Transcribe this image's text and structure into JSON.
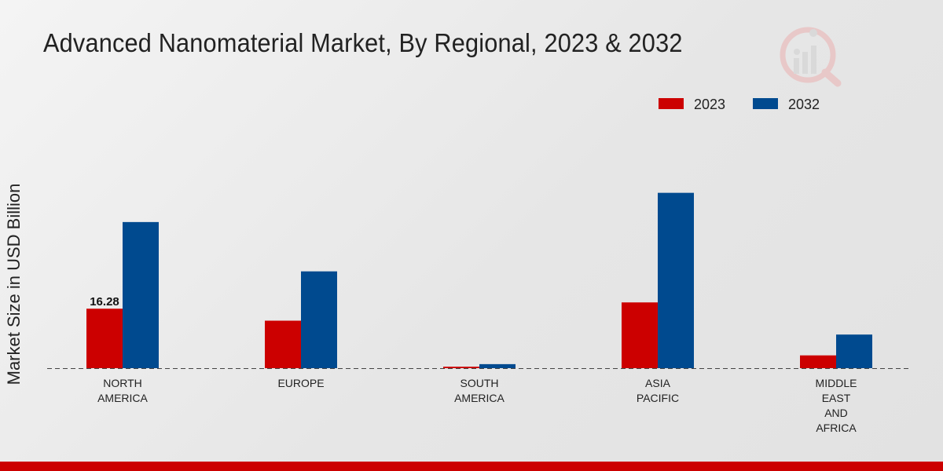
{
  "chart_data": {
    "type": "bar",
    "title": "Advanced Nanomaterial Market, By Regional, 2023 & 2032",
    "ylabel": "Market Size in USD Billion",
    "xlabel": "",
    "categories": [
      [
        "NORTH",
        "AMERICA"
      ],
      [
        "EUROPE"
      ],
      [
        "SOUTH",
        "AMERICA"
      ],
      [
        "ASIA",
        "PACIFIC"
      ],
      [
        "MIDDLE",
        "EAST",
        "AND",
        "AFRICA"
      ]
    ],
    "series": [
      {
        "name": "2023",
        "values": [
          16.28,
          13.0,
          0.4,
          18.0,
          3.5
        ]
      },
      {
        "name": "2032",
        "values": [
          40.0,
          26.5,
          1.1,
          48.0,
          9.2
        ]
      }
    ],
    "data_labels": [
      {
        "series": 0,
        "index": 0,
        "text": "16.28"
      }
    ],
    "ylim": [
      0,
      75
    ],
    "legend_position": "top-right",
    "grid": false
  },
  "colors": {
    "series": [
      "#cc0000",
      "#004a8f"
    ],
    "footer": "#cc0000",
    "text": "#222222"
  },
  "icons": {
    "logo": "brand-logo-icon"
  }
}
